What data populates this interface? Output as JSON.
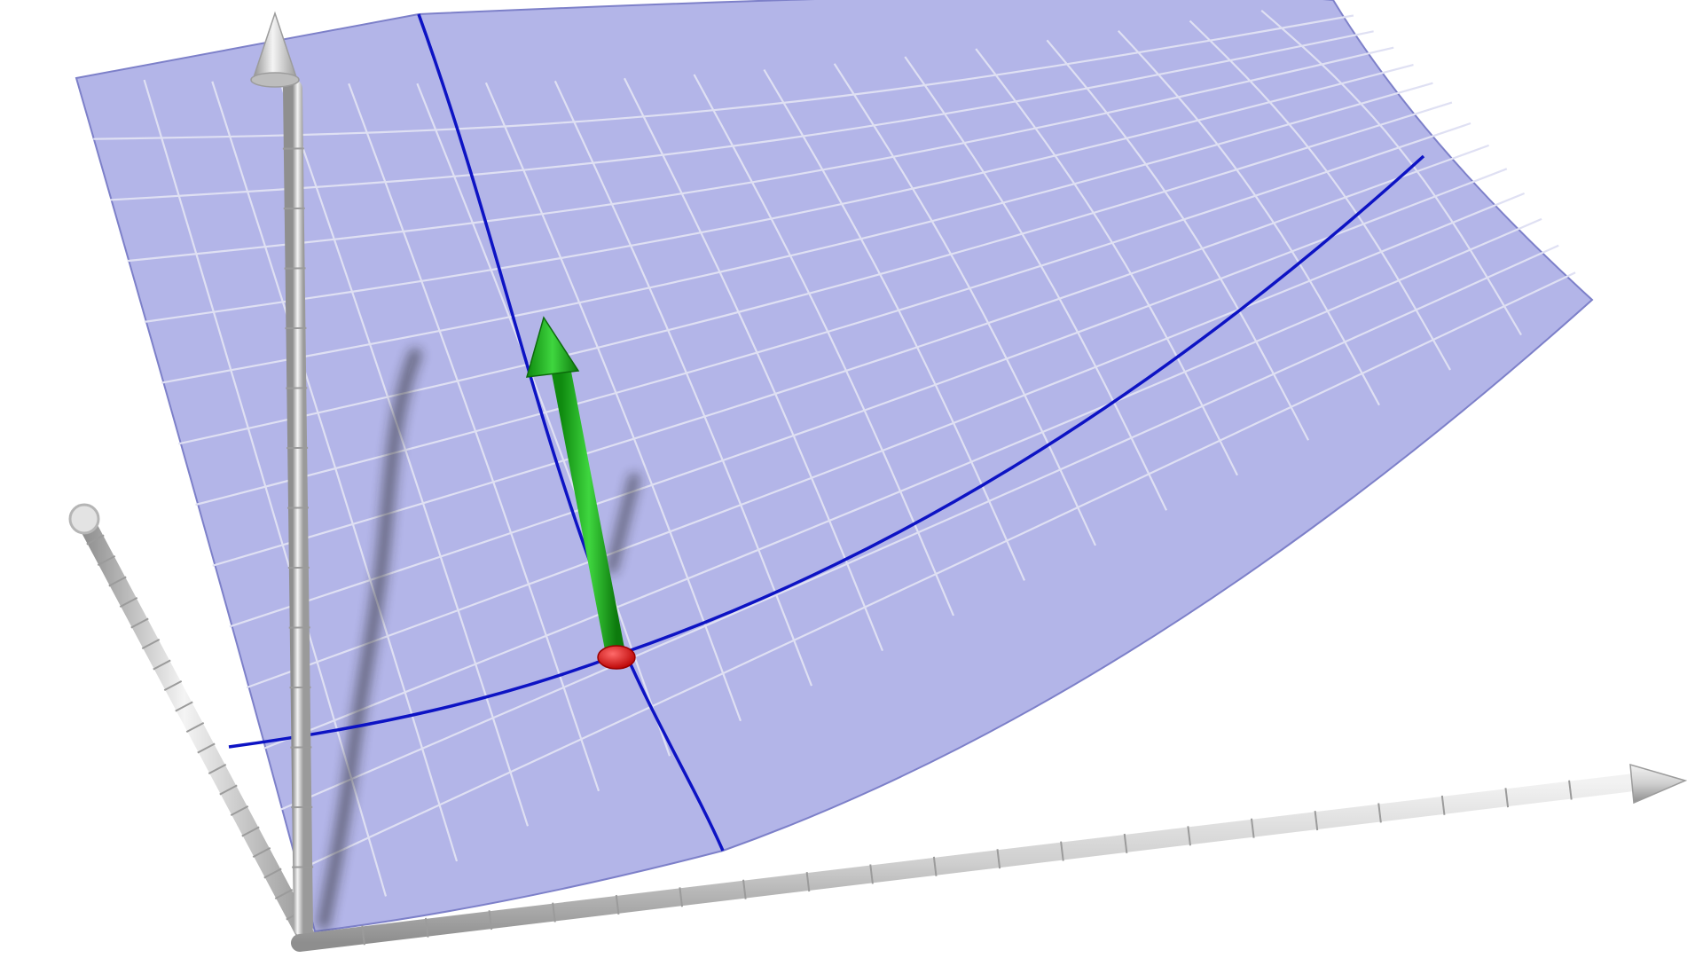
{
  "scene": {
    "kind": "3d-surface-view",
    "surface": {
      "fill": "#b3b5e8",
      "mesh_line": "#dfe0f3",
      "edge": "#7d80c9",
      "grid_u": 18,
      "grid_v": 14
    },
    "coordinate_curves": {
      "color": "#0d13c4"
    },
    "axes": {
      "color": "#d2d2d2",
      "items": [
        {
          "name": "vertical-axis"
        },
        {
          "name": "horizontal-axis"
        },
        {
          "name": "depth-axis"
        }
      ]
    },
    "point": {
      "color": "#e01515"
    },
    "normal_vector": {
      "color": "#17b417"
    },
    "shadow": {
      "color": "#1a1a1a"
    }
  }
}
